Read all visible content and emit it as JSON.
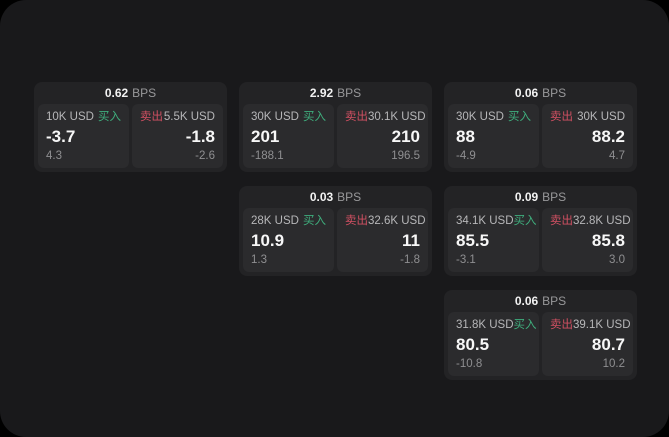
{
  "page": {
    "background": "#000000",
    "panel_background": "#19191b"
  },
  "labels": {
    "buy": "买入",
    "sell": "卖出",
    "bps_unit": "BPS"
  },
  "colors": {
    "buy": "#3fae7d",
    "sell": "#d15062",
    "card_bg": "#232325",
    "cell_bg": "#2b2b2d",
    "price_text": "#f7f7f7",
    "muted_text": "#8f8f91"
  },
  "cards": [
    {
      "bps": "0.62",
      "grid": {
        "row": 1,
        "col": 1
      },
      "buy": {
        "amount": "10K USD",
        "price": "-3.7",
        "delta": "4.3"
      },
      "sell": {
        "amount": "5.5K USD",
        "price": "-1.8",
        "delta": "-2.6"
      }
    },
    {
      "bps": "2.92",
      "grid": {
        "row": 1,
        "col": 2
      },
      "buy": {
        "amount": "30K USD",
        "price": "201",
        "delta": "-188.1"
      },
      "sell": {
        "amount": "30.1K USD",
        "price": "210",
        "delta": "196.5"
      }
    },
    {
      "bps": "0.06",
      "grid": {
        "row": 1,
        "col": 3
      },
      "buy": {
        "amount": "30K USD",
        "price": "88",
        "delta": "-4.9"
      },
      "sell": {
        "amount": "30K USD",
        "price": "88.2",
        "delta": "4.7"
      }
    },
    {
      "bps": "0.03",
      "grid": {
        "row": 2,
        "col": 2
      },
      "buy": {
        "amount": "28K USD",
        "price": "10.9",
        "delta": "1.3"
      },
      "sell": {
        "amount": "32.6K USD",
        "price": "11",
        "delta": "-1.8"
      }
    },
    {
      "bps": "0.09",
      "grid": {
        "row": 2,
        "col": 3
      },
      "buy": {
        "amount": "34.1K USD",
        "price": "85.5",
        "delta": "-3.1"
      },
      "sell": {
        "amount": "32.8K USD",
        "price": "85.8",
        "delta": "3.0"
      }
    },
    {
      "bps": "0.06",
      "grid": {
        "row": 3,
        "col": 3
      },
      "buy": {
        "amount": "31.8K USD",
        "price": "80.5",
        "delta": "-10.8"
      },
      "sell": {
        "amount": "39.1K USD",
        "price": "80.7",
        "delta": "10.2"
      }
    }
  ]
}
